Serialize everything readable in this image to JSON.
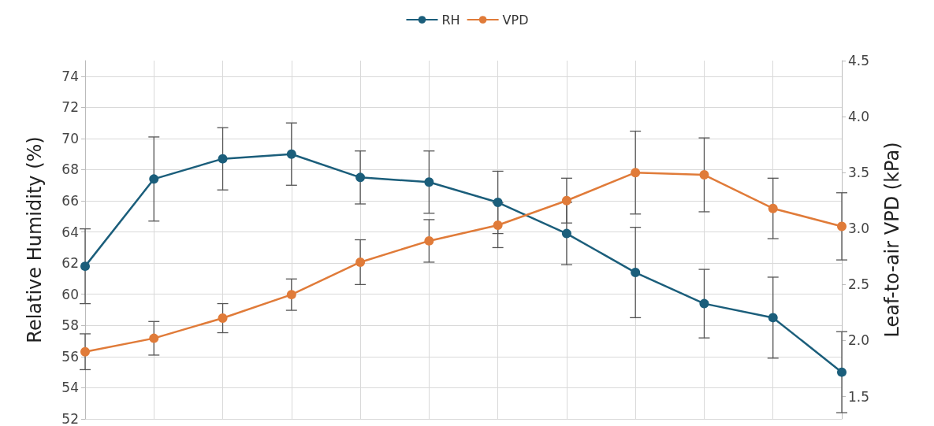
{
  "chart_data": {
    "type": "line",
    "ylabel": "Relative Humidity (%)",
    "y2label": "Leaf-to-air VPD (kPa)",
    "categories": [
      null,
      null,
      null,
      null,
      null,
      null,
      null,
      null,
      null,
      null,
      null,
      null
    ],
    "series": [
      {
        "name": "RH",
        "color": "#1b5e7b",
        "values": [
          61.8,
          67.4,
          68.7,
          69.0,
          67.5,
          67.2,
          65.9,
          63.9,
          61.4,
          59.4,
          58.5,
          55.0
        ],
        "errors": [
          2.4,
          2.7,
          2.0,
          2.0,
          1.7,
          2.0,
          2.0,
          2.0,
          2.9,
          2.2,
          2.6,
          2.6
        ]
      },
      {
        "name": "VPD",
        "color": "#e07b39",
        "axis": "y2",
        "values": [
          1.9,
          2.02,
          2.2,
          2.41,
          2.7,
          2.89,
          3.03,
          3.25,
          3.5,
          3.48,
          3.18,
          3.02
        ],
        "errors": [
          0.16,
          0.15,
          0.13,
          0.14,
          0.2,
          0.19,
          0.2,
          0.2,
          0.37,
          0.33,
          0.27,
          0.3
        ]
      }
    ],
    "ylim": [
      52,
      75
    ],
    "yticks": [
      52,
      54,
      56,
      58,
      60,
      62,
      64,
      66,
      68,
      70,
      72,
      74
    ],
    "y2lim": [
      1.3,
      4.5
    ],
    "y2ticks": [
      1.5,
      {
        "value": 2,
        "label": "2.0"
      },
      2.5,
      {
        "value": 3,
        "label": "3.0"
      },
      3.5,
      {
        "value": 4,
        "label": "4.0"
      },
      4.5
    ],
    "tick_labels": "y",
    "grid": true,
    "legend": "top",
    "marker": "circle",
    "line_style": "solid"
  }
}
